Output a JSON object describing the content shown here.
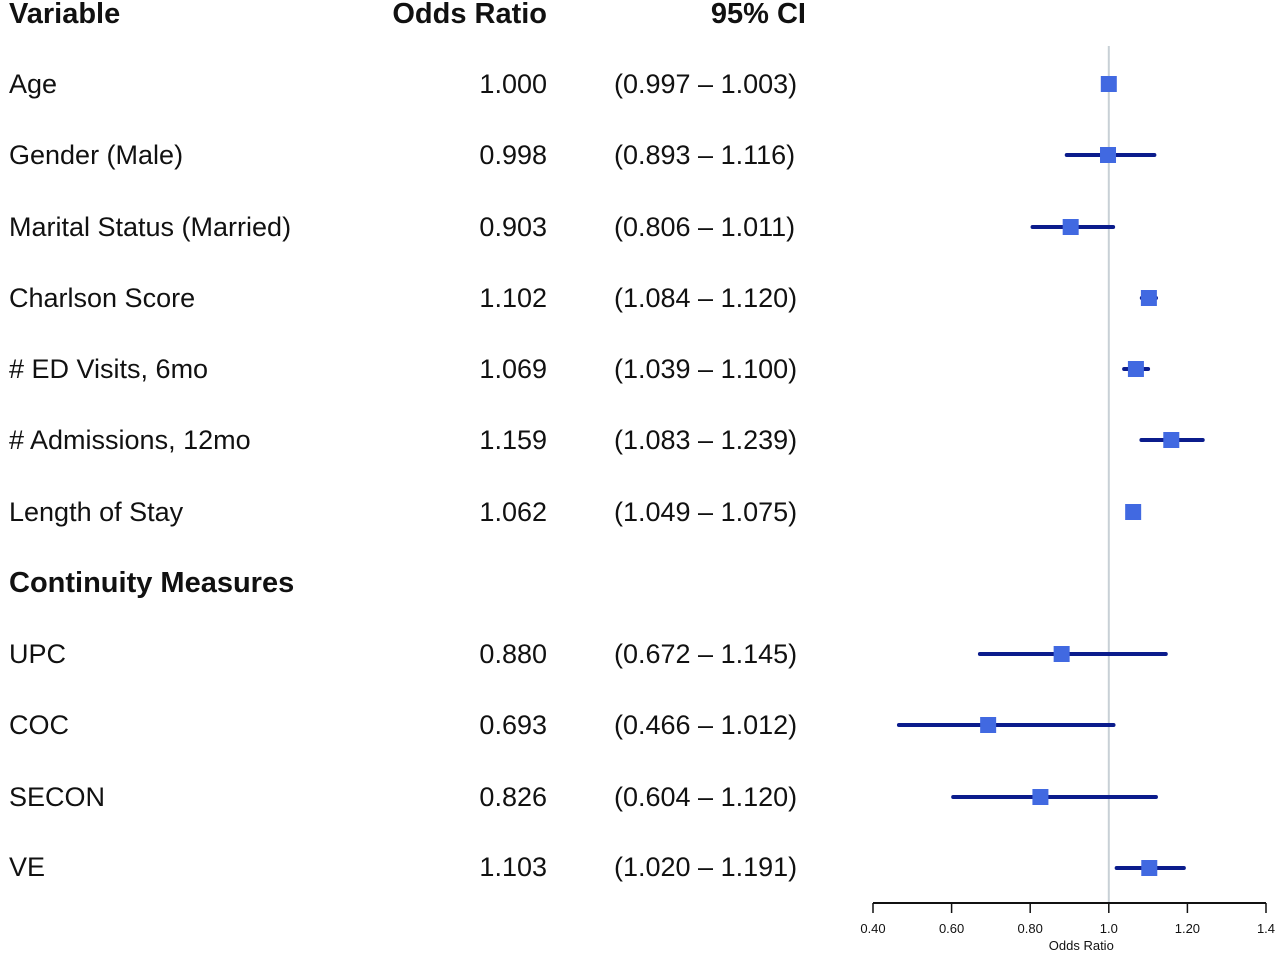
{
  "headers": {
    "variable": "Variable",
    "odds_ratio": "Odds Ratio",
    "ci": "95% CI"
  },
  "rows": [
    {
      "label": "Age",
      "or": "1.000",
      "ci": "(0.997 – 1.003)"
    },
    {
      "label": "Gender (Male)",
      "or": "0.998",
      "ci": "(0.893 – 1.116)"
    },
    {
      "label": "Marital Status (Married)",
      "or": "0.903",
      "ci": "(0.806 – 1.011)"
    },
    {
      "label": "Charlson Score",
      "or": "1.102",
      "ci": "(1.084 – 1.120)"
    },
    {
      "label": "# ED Visits, 6mo",
      "or": "1.069",
      "ci": "(1.039 – 1.100)"
    },
    {
      "label": "# Admissions, 12mo",
      "or": "1.159",
      "ci": "(1.083 – 1.239)"
    },
    {
      "label": "Length of Stay",
      "or": "1.062",
      "ci": "(1.049 – 1.075)"
    },
    {
      "label": "UPC",
      "or": "0.880",
      "ci": "(0.672 – 1.145)"
    },
    {
      "label": "COC",
      "or": "0.693",
      "ci": "(0.466 – 1.012)"
    },
    {
      "label": "SECON",
      "or": "0.826",
      "ci": "(0.604 – 1.120)"
    },
    {
      "label": "VE",
      "or": "1.103",
      "ci": "(1.020 – 1.191)"
    }
  ],
  "section_label": "Continuity Measures",
  "colors": {
    "marker": "#4169e1",
    "ci_line": "#0b1c8c",
    "reference_line": "#c8d0d6",
    "axis": "#111111"
  },
  "chart_data": {
    "type": "forest",
    "xlabel": "Odds Ratio",
    "x_ticks": [
      "0.40",
      "0.60",
      "0.80",
      "1.0",
      "1.20",
      "1.4"
    ],
    "x_tick_values": [
      0.4,
      0.6,
      0.8,
      1.0,
      1.2,
      1.4
    ],
    "xlim": [
      0.4,
      1.4
    ],
    "reference_value": 1.0,
    "series": [
      {
        "category": "Age",
        "estimate": 1.0,
        "lower": 0.997,
        "upper": 1.003
      },
      {
        "category": "Gender (Male)",
        "estimate": 0.998,
        "lower": 0.893,
        "upper": 1.116
      },
      {
        "category": "Marital Status (Married)",
        "estimate": 0.903,
        "lower": 0.806,
        "upper": 1.011
      },
      {
        "category": "Charlson Score",
        "estimate": 1.102,
        "lower": 1.084,
        "upper": 1.12
      },
      {
        "category": "# ED Visits, 6mo",
        "estimate": 1.069,
        "lower": 1.039,
        "upper": 1.1
      },
      {
        "category": "# Admissions, 12mo",
        "estimate": 1.159,
        "lower": 1.083,
        "upper": 1.239
      },
      {
        "category": "Length of Stay",
        "estimate": 1.062,
        "lower": 1.049,
        "upper": 1.075
      },
      {
        "category": "UPC",
        "estimate": 0.88,
        "lower": 0.672,
        "upper": 1.145
      },
      {
        "category": "COC",
        "estimate": 0.693,
        "lower": 0.466,
        "upper": 1.012
      },
      {
        "category": "SECON",
        "estimate": 0.826,
        "lower": 0.604,
        "upper": 1.12
      },
      {
        "category": "VE",
        "estimate": 1.103,
        "lower": 1.02,
        "upper": 1.191
      }
    ]
  }
}
